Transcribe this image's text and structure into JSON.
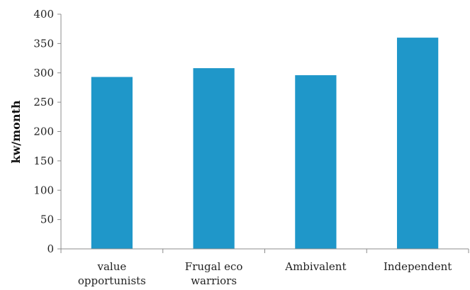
{
  "chart_data": {
    "type": "bar",
    "title": "",
    "xlabel": "",
    "ylabel": "kw/month",
    "categories": [
      [
        "value",
        "opportunists"
      ],
      [
        "Frugal eco",
        "warriors"
      ],
      [
        "Ambivalent"
      ],
      [
        "Independent"
      ]
    ],
    "values": [
      293,
      308,
      296,
      360
    ],
    "ylim": [
      0,
      400
    ],
    "yticks": [
      0,
      50,
      100,
      150,
      200,
      250,
      300,
      350,
      400
    ],
    "grid": false,
    "legend": "none",
    "bar_color": "#1f97c9"
  }
}
